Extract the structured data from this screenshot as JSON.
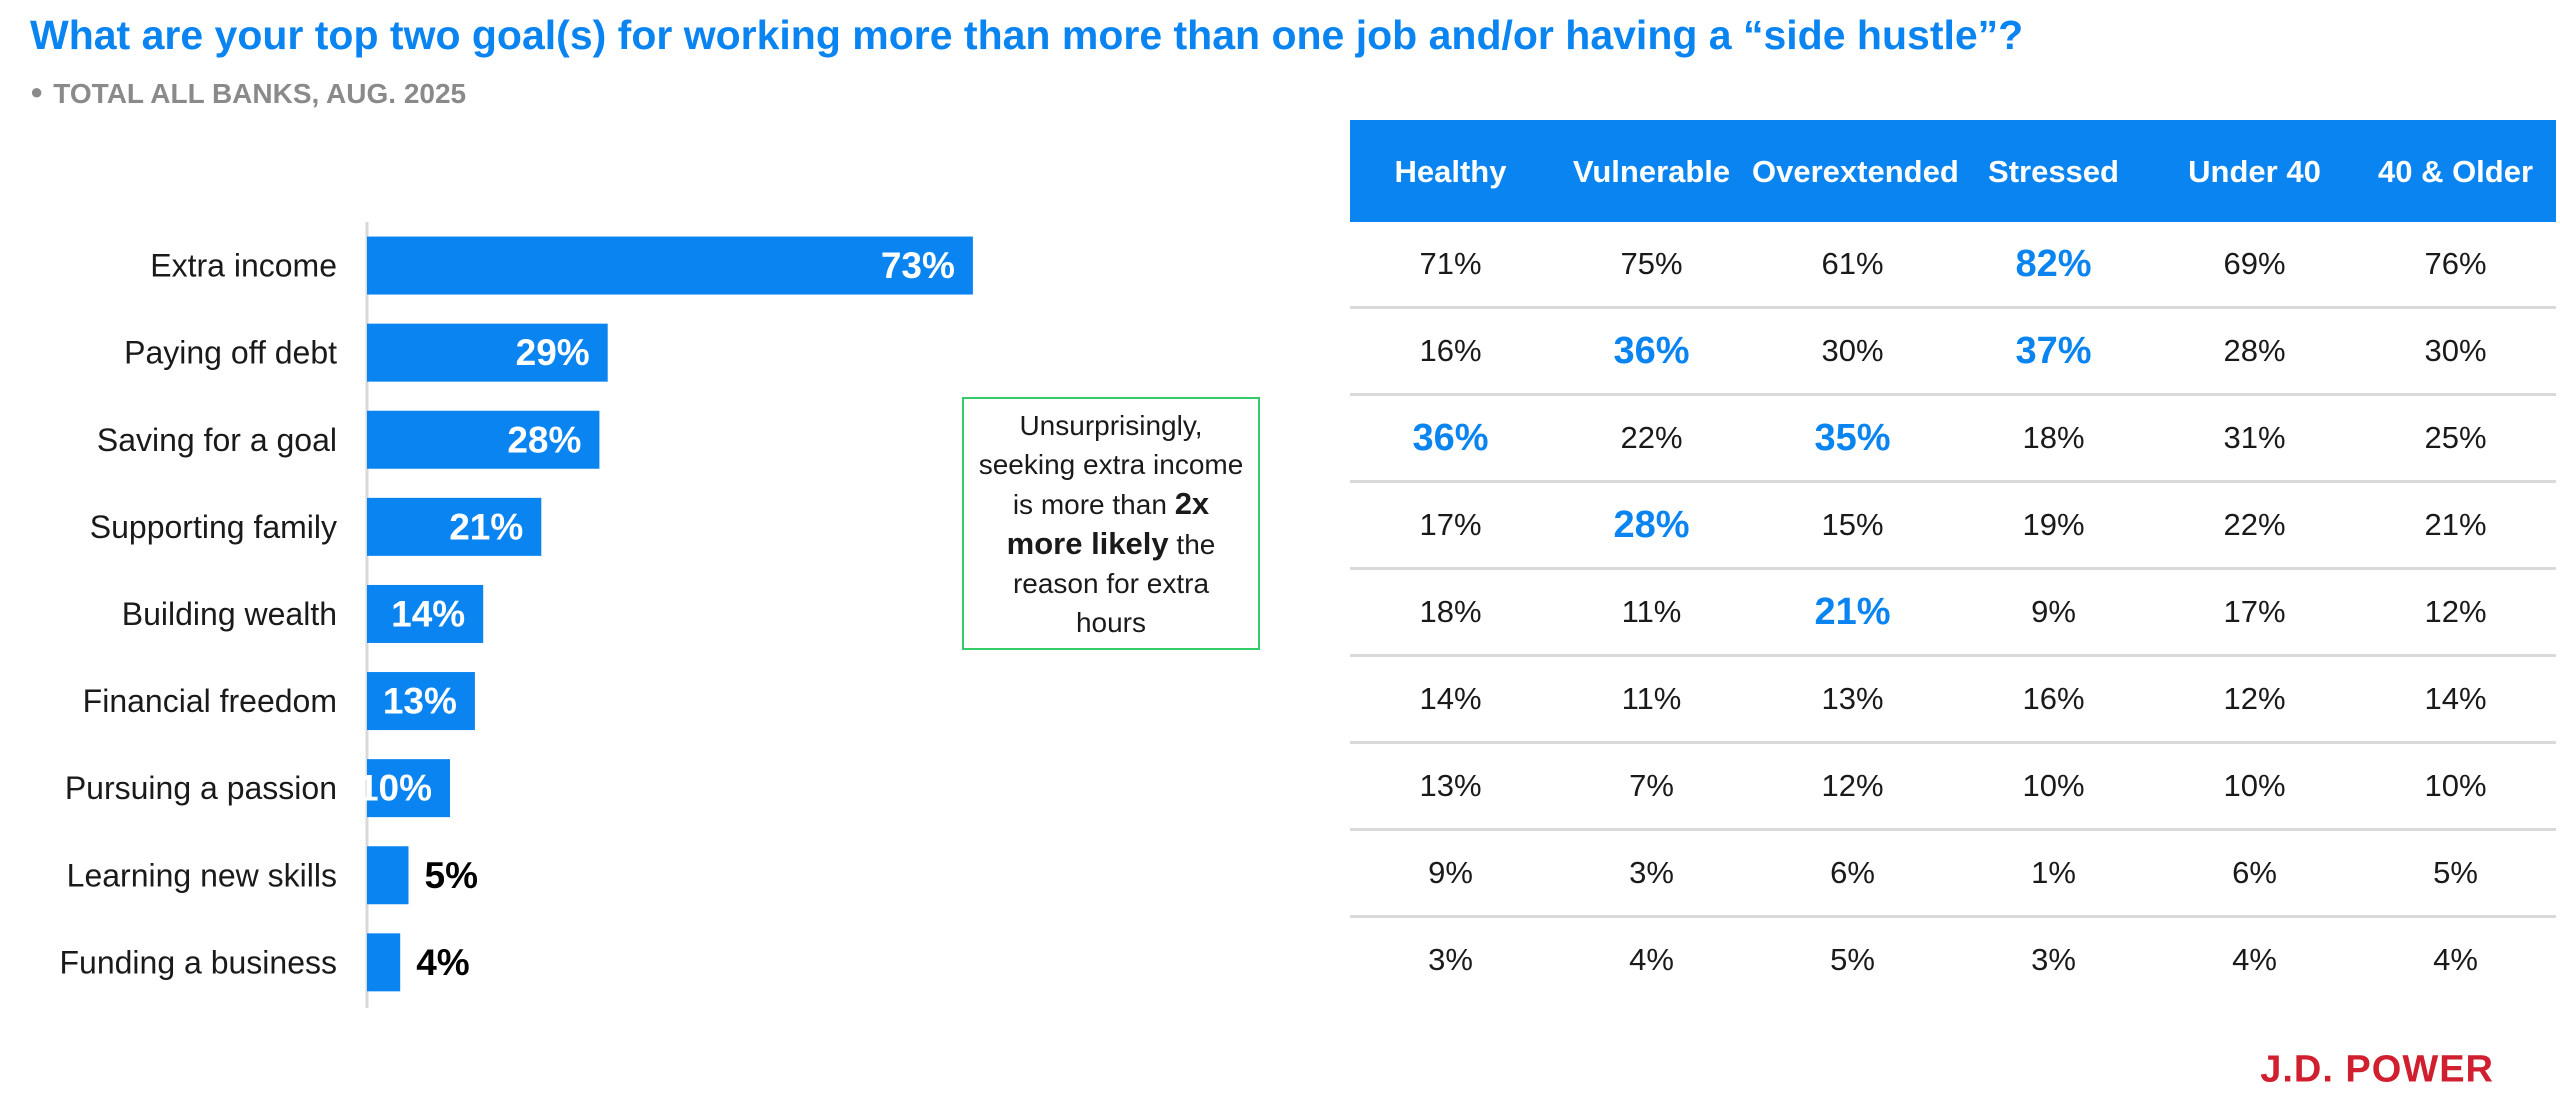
{
  "title": "What are your top two goal(s) for working more than more than one job and/or having a “side hustle”?",
  "subtitle": "TOTAL ALL BANKS, AUG. 2025",
  "callout": {
    "line1": "Unsurprisingly, seeking extra income is more than ",
    "bold": "2x more likely",
    "line2": " the reason for extra hours"
  },
  "logo": "J.D. POWER",
  "colors": {
    "accent": "#0a84f0",
    "logo": "#d0202f",
    "callout_border": "#33cc66"
  },
  "chart_data": {
    "type": "bar",
    "orientation": "horizontal",
    "categories": [
      "Extra income",
      "Paying off debt",
      "Saving for a goal",
      "Supporting family",
      "Building wealth",
      "Financial freedom",
      "Pursuing a passion",
      "Learning new skills",
      "Funding a business"
    ],
    "values": [
      73,
      29,
      28,
      21,
      14,
      13,
      10,
      5,
      4
    ],
    "value_labels": [
      "73%",
      "29%",
      "28%",
      "21%",
      "14%",
      "13%",
      "10%",
      "5%",
      "4%"
    ],
    "xlim": [
      0,
      100
    ],
    "grid": false
  },
  "table": {
    "headers": [
      "Healthy",
      "Vulnerable",
      "Overextended",
      "Stressed",
      "Under 40",
      "40 & Older"
    ],
    "rows": [
      [
        "71%",
        "75%",
        "61%",
        "82%",
        "69%",
        "76%"
      ],
      [
        "16%",
        "36%",
        "30%",
        "37%",
        "28%",
        "30%"
      ],
      [
        "36%",
        "22%",
        "35%",
        "18%",
        "31%",
        "25%"
      ],
      [
        "17%",
        "28%",
        "15%",
        "19%",
        "22%",
        "21%"
      ],
      [
        "18%",
        "11%",
        "21%",
        "9%",
        "17%",
        "12%"
      ],
      [
        "14%",
        "11%",
        "13%",
        "16%",
        "12%",
        "14%"
      ],
      [
        "13%",
        "7%",
        "12%",
        "10%",
        "10%",
        "10%"
      ],
      [
        "9%",
        "3%",
        "6%",
        "1%",
        "6%",
        "5%"
      ],
      [
        "3%",
        "4%",
        "5%",
        "3%",
        "4%",
        "4%"
      ]
    ],
    "highlighted": [
      [
        0,
        3
      ],
      [
        1,
        1
      ],
      [
        1,
        3
      ],
      [
        2,
        0
      ],
      [
        2,
        2
      ],
      [
        3,
        1
      ],
      [
        4,
        2
      ]
    ]
  }
}
